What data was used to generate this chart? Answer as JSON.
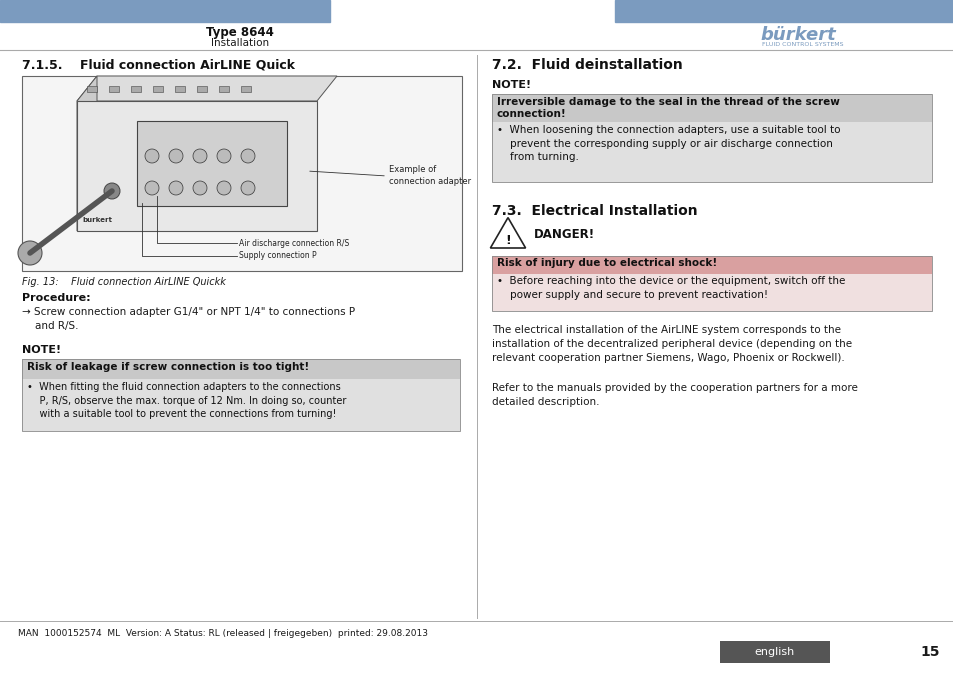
{
  "bg_color": "#ffffff",
  "header_bar_color": "#7b9bbf",
  "header_text_left": "Type 8644",
  "header_text_left_sub": "Installation",
  "footer_bar_color": "#555555",
  "footer_text": "MAN  1000152574  ML  Version: A Status: RL (released | freigegeben)  printed: 29.08.2013",
  "footer_lang": "english",
  "footer_page": "15",
  "section_left_title": "7.1.5.    Fluid connection AirLINE Quick",
  "fig_caption": "Fig. 13:    Fluid connection AirLINE Quickk",
  "procedure_label": "Procedure:",
  "procedure_text": "→ Screw connection adapter G1/4\" or NPT 1/4\" to connections P\n    and R/S.",
  "note_left_label": "NOTE!",
  "note_left_header": "Risk of leakage if screw connection is too tight!",
  "note_left_body": "•  When fitting the fluid connection adapters to the connections\n    P, R/S, observe the max. torque of 12 Nm. In doing so, counter\n    with a suitable tool to prevent the connections from turning!",
  "section_right_title_1": "7.2.  Fluid deinstallation",
  "note_right_label": "NOTE!",
  "note_right_header": "Irreversible damage to the seal in the thread of the screw\nconnection!",
  "note_right_body": "•  When loosening the connection adapters, use a suitable tool to\n    prevent the corresponding supply or air discharge connection\n    from turning.",
  "section_right_title_2": "7.3.  Electrical Installation",
  "danger_label": "DANGER!",
  "danger_header": "Risk of injury due to electrical shock!",
  "danger_body": "•  Before reaching into the device or the equipment, switch off the\n    power supply and secure to prevent reactivation!",
  "elec_para1": "The electrical installation of the AirLINE system corresponds to the\ninstallation of the decentralized peripheral device (depending on the\nrelevant cooperation partner Siemens, Wago, Phoenix or Rockwell).",
  "elec_para2": "Refer to the manuals provided by the cooperation partners for a more\ndetailed description.",
  "divider_color": "#aaaaaa",
  "text_color": "#1a1a1a",
  "heading_color": "#111111",
  "note_gray_dark": "#c8c8c8",
  "note_gray_light": "#e0e0e0",
  "danger_pink": "#d9a0a0",
  "danger_light": "#f0e0e0"
}
